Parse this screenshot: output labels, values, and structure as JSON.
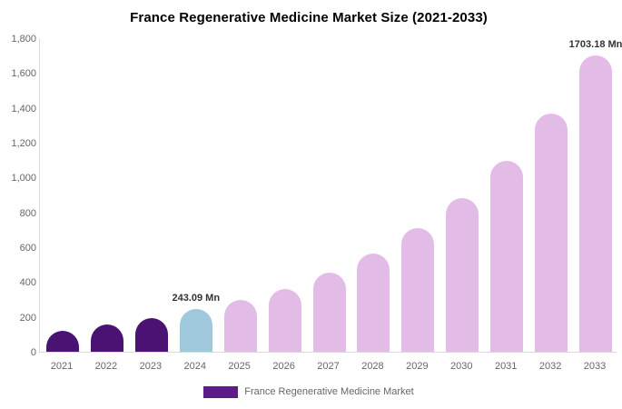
{
  "chart": {
    "title": "France Regenerative Medicine Market Size (2021-2033)",
    "legend": {
      "label": "France Regenerative Medicine Market",
      "swatch_color": "#5A1F87"
    }
  },
  "chart_data": {
    "type": "bar",
    "title": "France Regenerative Medicine Market Size (2021-2033)",
    "xlabel": "",
    "ylabel": "",
    "unit": "Mn",
    "categories": [
      "2021",
      "2022",
      "2023",
      "2024",
      "2025",
      "2026",
      "2027",
      "2028",
      "2029",
      "2030",
      "2031",
      "2032",
      "2033"
    ],
    "values": [
      120,
      155,
      192,
      243.09,
      295,
      360,
      452,
      566,
      708,
      882,
      1098,
      1366,
      1703.18
    ],
    "bar_colors": [
      "#4A1273",
      "#4A1273",
      "#4A1273",
      "#A0C8DD",
      "#E2BCE6",
      "#E2BCE6",
      "#E2BCE6",
      "#E2BCE6",
      "#E2BCE6",
      "#E2BCE6",
      "#E2BCE6",
      "#E2BCE6",
      "#E2BCE6"
    ],
    "ylim": [
      0,
      1800
    ],
    "ytick_step": 200,
    "ytick_labels": [
      "0",
      "200",
      "400",
      "600",
      "800",
      "1,000",
      "1,200",
      "1,400",
      "1,600",
      "1,800"
    ],
    "annotations": [
      {
        "category": "2024",
        "text": "243.09 Mn"
      },
      {
        "category": "2033",
        "text": "1703.18 Mn"
      }
    ],
    "grid": false,
    "legend_position": "bottom",
    "legend_entries": [
      {
        "label": "France Regenerative Medicine Market",
        "color": "#5A1F87"
      }
    ],
    "colors": {
      "axis_line": "#d9d9d9",
      "tick_text": "#666666",
      "title_text": "#000000",
      "annotation_text": "#333333"
    }
  }
}
